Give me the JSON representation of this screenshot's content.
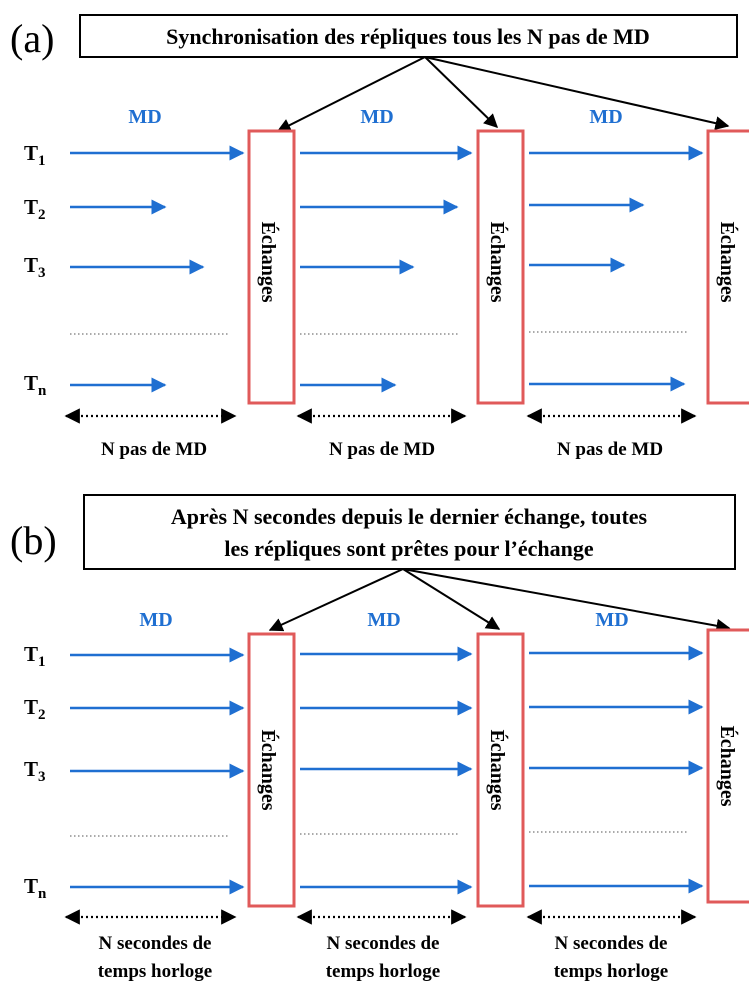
{
  "panel_a": {
    "label": "(a)",
    "title": "Synchronisation des répliques tous les N pas de MD",
    "md_label": "MD",
    "temperatures": [
      {
        "base": "T",
        "sub": "1"
      },
      {
        "base": "T",
        "sub": "2"
      },
      {
        "base": "T",
        "sub": "3"
      },
      {
        "base": "T",
        "sub": "n"
      }
    ],
    "exchange_label": "Échanges",
    "interval_label": "N pas de MD"
  },
  "panel_b": {
    "label": "(b)",
    "title_line1": "Après N secondes depuis le dernier échange, toutes",
    "title_line2": "les répliques sont prêtes pour l’échange",
    "md_label": "MD",
    "temperatures": [
      {
        "base": "T",
        "sub": "1"
      },
      {
        "base": "T",
        "sub": "2"
      },
      {
        "base": "T",
        "sub": "3"
      },
      {
        "base": "T",
        "sub": "n"
      }
    ],
    "exchange_label": "Échanges",
    "interval_label_line1": "N secondes de",
    "interval_label_line2": "temps horloge"
  },
  "colors": {
    "arrow": "#1f6fd1",
    "md_text": "#1f6fd1",
    "exchange_border": "#e05a5a",
    "title_border": "#000000"
  }
}
